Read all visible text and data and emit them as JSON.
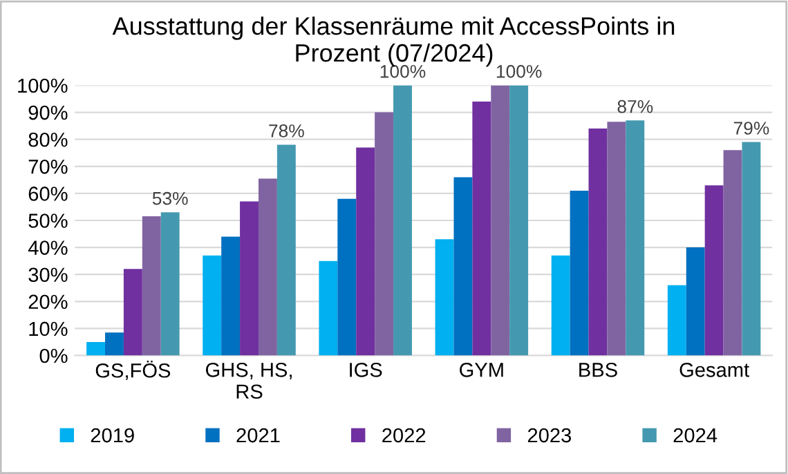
{
  "chart_data": {
    "type": "bar",
    "title": "Ausstattung der Klassenräume mit AccessPoints in\nProzent (07/2024)",
    "categories": [
      "GS,FÖS",
      "GHS, HS,\nRS",
      "IGS",
      "GYM",
      "BBS",
      "Gesamt"
    ],
    "series": [
      {
        "name": "2019",
        "color": "#00b0f0",
        "values": [
          5,
          37,
          35,
          43,
          37,
          26
        ]
      },
      {
        "name": "2021",
        "color": "#0070c0",
        "values": [
          8.5,
          44,
          58,
          66,
          61,
          40
        ]
      },
      {
        "name": "2022",
        "color": "#7030a0",
        "values": [
          32,
          57,
          77,
          94,
          84,
          63
        ]
      },
      {
        "name": "2023",
        "color": "#8064a2",
        "values": [
          51.5,
          65.5,
          90,
          100,
          86.5,
          76
        ]
      },
      {
        "name": "2024",
        "color": "#4499b0",
        "values": [
          53,
          78,
          100,
          100,
          87,
          79
        ],
        "value_labels": [
          "53%",
          "78%",
          "100%",
          "100%",
          "87%",
          "79%"
        ]
      }
    ],
    "ylim": [
      0,
      100
    ],
    "yticks": [
      {
        "value": 0,
        "label": "0%"
      },
      {
        "value": 10,
        "label": "10%"
      },
      {
        "value": 20,
        "label": "20%"
      },
      {
        "value": 30,
        "label": "30%"
      },
      {
        "value": 40,
        "label": "40%"
      },
      {
        "value": 50,
        "label": "50%"
      },
      {
        "value": 60,
        "label": "60%"
      },
      {
        "value": 70,
        "label": "70%"
      },
      {
        "value": 80,
        "label": "80%"
      },
      {
        "value": 90,
        "label": "90%"
      },
      {
        "value": 100,
        "label": "100%"
      }
    ],
    "grid": "y",
    "legend": "bottom"
  }
}
